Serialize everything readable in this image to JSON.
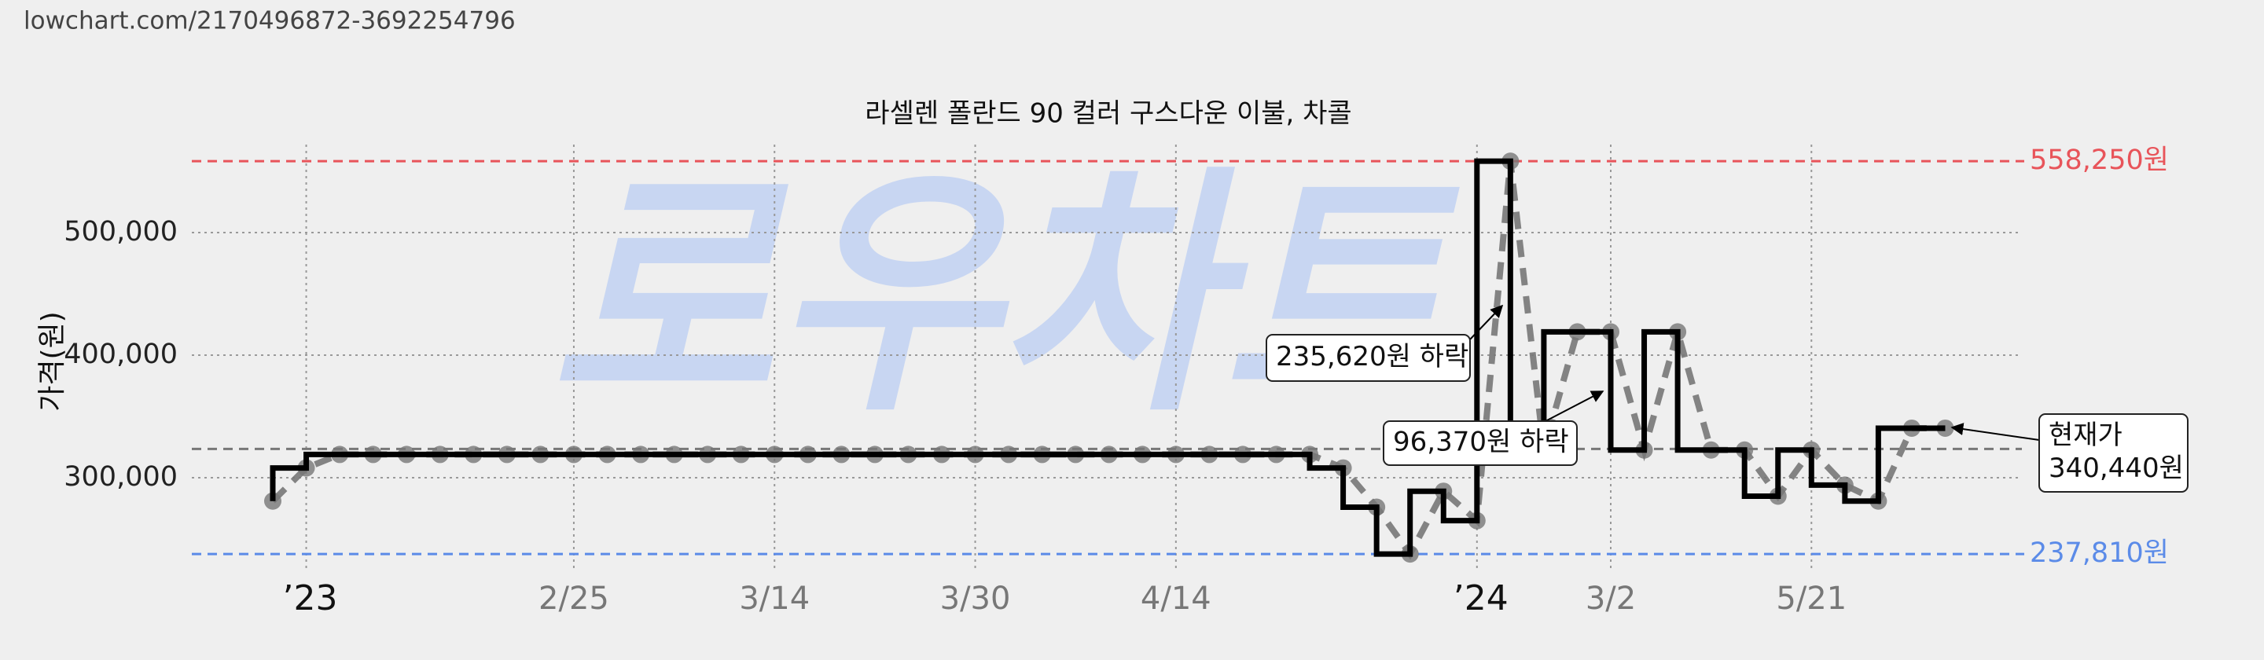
{
  "url": "lowchart.com/2170496872-3692254796",
  "chart_data": {
    "type": "line",
    "title": "라셀렌 폴란드 90 컬러 구스다운 이불, 차콜",
    "watermark": "로우차트",
    "y_label": "가격(원)",
    "categories": [
      null,
      "’23",
      null,
      null,
      null,
      null,
      null,
      null,
      null,
      "2/25",
      null,
      null,
      null,
      null,
      null,
      "3/14",
      null,
      null,
      null,
      null,
      null,
      "3/30",
      null,
      null,
      null,
      null,
      null,
      "4/14",
      null,
      null,
      null,
      null,
      null,
      null,
      null,
      null,
      "’24",
      null,
      null,
      null,
      "3/2",
      null,
      null,
      null,
      null,
      null,
      "5/21",
      null,
      null,
      null,
      null
    ],
    "values": [
      281000,
      308000,
      319000,
      319000,
      319000,
      319000,
      319000,
      319000,
      319000,
      319000,
      319000,
      319000,
      319000,
      319000,
      319000,
      319000,
      319000,
      319000,
      319000,
      319000,
      319000,
      319000,
      319000,
      319000,
      319000,
      319000,
      319000,
      319000,
      319000,
      319000,
      319000,
      319000,
      308000,
      276000,
      237810,
      289000,
      265000,
      558250,
      322630,
      419000,
      419000,
      322630,
      419000,
      322630,
      322630,
      285000,
      322630,
      294000,
      281000,
      340440,
      340440
    ],
    "color": "#000000",
    "trend_color": "#777777",
    "ylim": [
      224400,
      571800
    ],
    "yticks": [
      {
        "value": 300000,
        "label": "300,000"
      },
      {
        "value": 400000,
        "label": "400,000"
      },
      {
        "value": 500000,
        "label": "500,000"
      }
    ],
    "grid": true,
    "average": 323500,
    "hlines": [
      {
        "value": 558250,
        "label": "558,250원",
        "color": "#e8545a"
      },
      {
        "value": 237810,
        "label": "237,810원",
        "color": "#5b8be8"
      }
    ],
    "annotations": [
      {
        "text": [
          "235,620원 하락"
        ]
      },
      {
        "text": [
          "96,370원 하락"
        ]
      },
      {
        "text": [
          "현재가",
          "340,440원"
        ]
      }
    ]
  }
}
